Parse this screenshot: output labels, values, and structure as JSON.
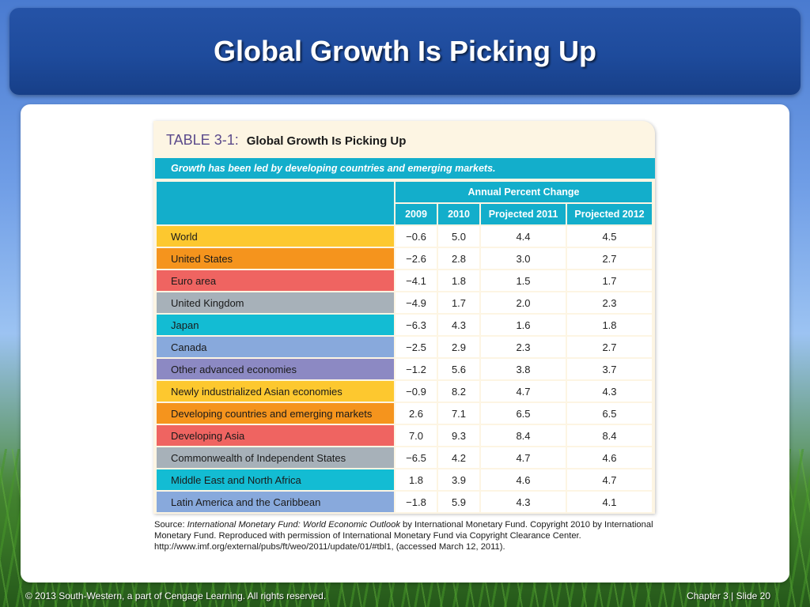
{
  "slide": {
    "title": "Global Growth Is Picking Up"
  },
  "table": {
    "number": "TABLE 3-1:",
    "title": "Global Growth Is Picking Up",
    "subtitle": "Growth has been led by developing countries and emerging markets.",
    "group_header": "Annual Percent Change",
    "columns": [
      "2009",
      "2010",
      "Projected 2011",
      "Projected 2012"
    ],
    "rows": [
      {
        "label": "World",
        "color": "#fdc82f",
        "values": [
          "−0.6",
          "5.0",
          "4.4",
          "4.5"
        ]
      },
      {
        "label": "United States",
        "color": "#f5941d",
        "values": [
          "−2.6",
          "2.8",
          "3.0",
          "2.7"
        ]
      },
      {
        "label": "Euro area",
        "color": "#ef6461",
        "values": [
          "−4.1",
          "1.8",
          "1.5",
          "1.7"
        ]
      },
      {
        "label": "United Kingdom",
        "color": "#a7b1b9",
        "values": [
          "−4.9",
          "1.7",
          "2.0",
          "2.3"
        ]
      },
      {
        "label": "Japan",
        "color": "#13bcd3",
        "values": [
          "−6.3",
          "4.3",
          "1.6",
          "1.8"
        ]
      },
      {
        "label": "Canada",
        "color": "#88a9dc",
        "values": [
          "−2.5",
          "2.9",
          "2.3",
          "2.7"
        ]
      },
      {
        "label": "Other advanced economies",
        "color": "#8c89c3",
        "values": [
          "−1.2",
          "5.6",
          "3.8",
          "3.7"
        ]
      },
      {
        "label": "Newly industrialized Asian economies",
        "color": "#fdc82f",
        "values": [
          "−0.9",
          "8.2",
          "4.7",
          "4.3"
        ]
      },
      {
        "label": "Developing countries and emerging markets",
        "color": "#f5941d",
        "values": [
          "2.6",
          "7.1",
          "6.5",
          "6.5"
        ]
      },
      {
        "label": "Developing Asia",
        "color": "#ef6461",
        "values": [
          "7.0",
          "9.3",
          "8.4",
          "8.4"
        ]
      },
      {
        "label": "Commonwealth of Independent States",
        "color": "#a7b1b9",
        "values": [
          "−6.5",
          "4.2",
          "4.7",
          "4.6"
        ]
      },
      {
        "label": "Middle East and North Africa",
        "color": "#13bcd3",
        "values": [
          "1.8",
          "3.9",
          "4.6",
          "4.7"
        ]
      },
      {
        "label": "Latin America and the Caribbean",
        "color": "#88a9dc",
        "values": [
          "−1.8",
          "5.9",
          "4.3",
          "4.1"
        ]
      }
    ]
  },
  "source": {
    "prefix": "Source: ",
    "publication": "International Monetary Fund: World Economic Outlook",
    "rest": " by International Monetary Fund. Copyright 2010 by International Monetary Fund. Reproduced with permission of International Monetary Fund via Copyright Clearance Center. http://www.imf.org/external/pubs/ft/weo/2011/update/01/#tbl1, (accessed March 12, 2011)."
  },
  "footer": {
    "copyright": "© 2013 South-Western, a part of Cengage Learning. All rights reserved.",
    "slide_ref": "Chapter 3 | Slide 20"
  }
}
